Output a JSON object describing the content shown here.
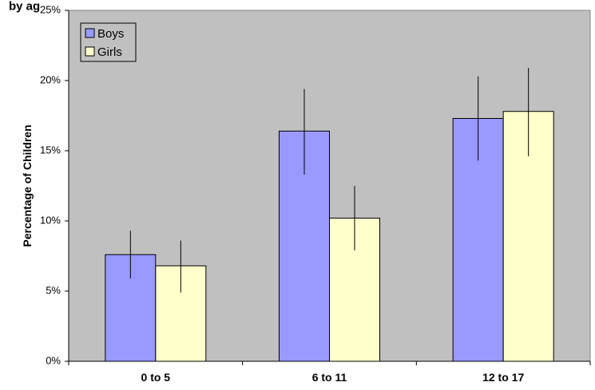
{
  "chart_data": {
    "type": "bar",
    "title": "",
    "xlabel": "",
    "ylabel": "Percentage of Children",
    "ylim": [
      0,
      25
    ],
    "y_ticks": [
      "0%",
      "5%",
      "10%",
      "15%",
      "20%",
      "25%"
    ],
    "y_tick_values": [
      0,
      5,
      10,
      15,
      20,
      25
    ],
    "categories": [
      "0 to 5",
      "6 to 11",
      "12 to 17"
    ],
    "series": [
      {
        "name": "Boys",
        "color": "#9999ff",
        "values": [
          7.6,
          16.4,
          17.3
        ],
        "error_low": [
          5.9,
          13.3,
          14.3
        ],
        "error_high": [
          9.3,
          19.4,
          20.3
        ]
      },
      {
        "name": "Girls",
        "color": "#ffffcc",
        "values": [
          6.8,
          10.2,
          17.8
        ],
        "error_low": [
          4.9,
          7.9,
          14.6
        ],
        "error_high": [
          8.6,
          12.5,
          20.9
        ]
      }
    ],
    "grid": false,
    "plot_background": "#c0c0c0",
    "legend": {
      "placement": "top-left",
      "entries": [
        "Boys",
        "Girls"
      ]
    },
    "clipped_title_fragment": "by ag"
  }
}
